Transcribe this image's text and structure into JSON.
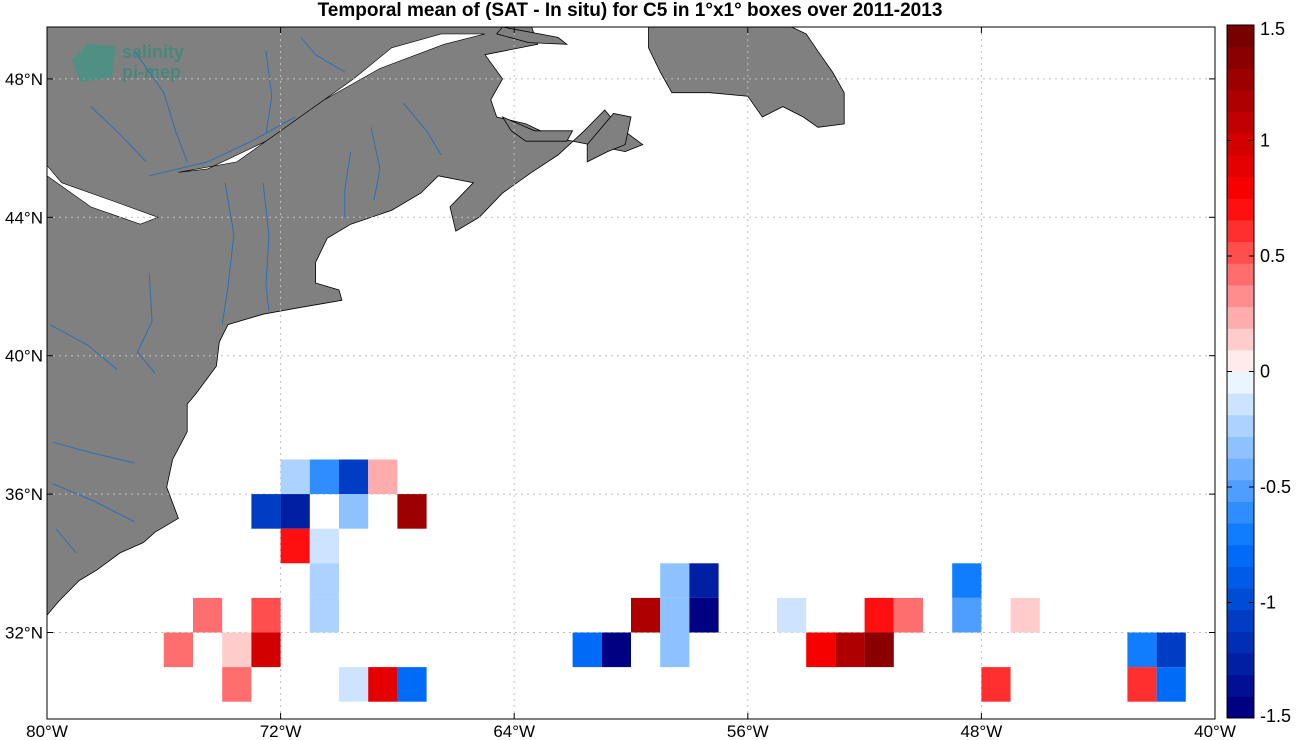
{
  "title": "Temporal mean of (SAT - In situ) for C5 in 1°x1° boxes over 2011-2013",
  "logo": {
    "line1": "salinity",
    "line2": "pi-mep"
  },
  "colors": {
    "land": "#808080",
    "river": "#2d6fb5",
    "ocean": "#ffffff",
    "grid": "#bdbdbd"
  },
  "map": {
    "lon_range": [
      -80,
      -40
    ],
    "lat_range": [
      29.5,
      49.5
    ]
  },
  "xticks": [
    {
      "value": -80,
      "label": "80°W"
    },
    {
      "value": -72,
      "label": "72°W"
    },
    {
      "value": -64,
      "label": "64°W"
    },
    {
      "value": -56,
      "label": "56°W"
    },
    {
      "value": -48,
      "label": "48°W"
    },
    {
      "value": -40,
      "label": "40°W"
    }
  ],
  "yticks": [
    {
      "value": 48,
      "label": "48°N"
    },
    {
      "value": 44,
      "label": "44°N"
    },
    {
      "value": 40,
      "label": "40°N"
    },
    {
      "value": 36,
      "label": "36°N"
    },
    {
      "value": 32,
      "label": "32°N"
    }
  ],
  "colorbar": {
    "range": [
      -1.5,
      1.5
    ],
    "levels": 32,
    "ticks": [
      {
        "value": 1.5,
        "label": "1.5"
      },
      {
        "value": 1,
        "label": "1"
      },
      {
        "value": 0.5,
        "label": "0.5"
      },
      {
        "value": 0,
        "label": "0"
      },
      {
        "value": -0.5,
        "label": "-0.5"
      },
      {
        "value": -1,
        "label": "-1"
      },
      {
        "value": -1.5,
        "label": "-1.5"
      }
    ]
  },
  "chart_data": {
    "type": "heatmap",
    "title": "Temporal mean of (SAT - In situ) for C5 in 1°x1° boxes over 2011-2013",
    "xlabel": "",
    "ylabel": "",
    "cell_size_deg": 1,
    "value_range": [
      -1.5,
      1.5
    ],
    "cells": [
      {
        "lon": -72,
        "lat": 36.5,
        "value": -0.25
      },
      {
        "lon": -71,
        "lat": 36.5,
        "value": -0.6
      },
      {
        "lon": -70,
        "lat": 36.5,
        "value": -1.1
      },
      {
        "lon": -69,
        "lat": 36.5,
        "value": 0.25
      },
      {
        "lon": -73,
        "lat": 35.5,
        "value": -1.1
      },
      {
        "lon": -72,
        "lat": 35.5,
        "value": -1.3
      },
      {
        "lon": -70,
        "lat": 35.5,
        "value": -0.3
      },
      {
        "lon": -68,
        "lat": 35.5,
        "value": 1.3
      },
      {
        "lon": -72,
        "lat": 34.5,
        "value": 0.7
      },
      {
        "lon": -71,
        "lat": 34.5,
        "value": -0.1
      },
      {
        "lon": -71,
        "lat": 33.5,
        "value": -0.2
      },
      {
        "lon": -71,
        "lat": 32.5,
        "value": -0.2
      },
      {
        "lon": -75,
        "lat": 32.5,
        "value": 0.4
      },
      {
        "lon": -73,
        "lat": 32.5,
        "value": 0.55
      },
      {
        "lon": -76,
        "lat": 31.5,
        "value": 0.4
      },
      {
        "lon": -74,
        "lat": 31.5,
        "value": 0.15
      },
      {
        "lon": -73,
        "lat": 31.5,
        "value": 1.0
      },
      {
        "lon": -74,
        "lat": 30.5,
        "value": 0.4
      },
      {
        "lon": -70,
        "lat": 30.5,
        "value": -0.1
      },
      {
        "lon": -69,
        "lat": 30.5,
        "value": 0.85
      },
      {
        "lon": -68,
        "lat": 30.5,
        "value": -0.8
      },
      {
        "lon": -59,
        "lat": 33.5,
        "value": -0.3
      },
      {
        "lon": -58,
        "lat": 33.5,
        "value": -1.3
      },
      {
        "lon": -60,
        "lat": 32.5,
        "value": 1.2
      },
      {
        "lon": -59,
        "lat": 32.5,
        "value": -0.3
      },
      {
        "lon": -58,
        "lat": 32.5,
        "value": -1.5
      },
      {
        "lon": -62,
        "lat": 31.5,
        "value": -0.8
      },
      {
        "lon": -61,
        "lat": 31.5,
        "value": -1.5
      },
      {
        "lon": -59,
        "lat": 31.5,
        "value": -0.3
      },
      {
        "lon": -49,
        "lat": 33.5,
        "value": -0.7
      },
      {
        "lon": -55,
        "lat": 32.5,
        "value": -0.1
      },
      {
        "lon": -52,
        "lat": 32.5,
        "value": 0.7
      },
      {
        "lon": -51,
        "lat": 32.5,
        "value": 0.45
      },
      {
        "lon": -49,
        "lat": 32.5,
        "value": -0.55
      },
      {
        "lon": -47,
        "lat": 32.5,
        "value": 0.15
      },
      {
        "lon": -54,
        "lat": 31.5,
        "value": 0.75
      },
      {
        "lon": -53,
        "lat": 31.5,
        "value": 1.2
      },
      {
        "lon": -52,
        "lat": 31.5,
        "value": 1.4
      },
      {
        "lon": -43,
        "lat": 31.5,
        "value": -0.75
      },
      {
        "lon": -42,
        "lat": 31.5,
        "value": -1.05
      },
      {
        "lon": -48,
        "lat": 30.5,
        "value": 0.6
      },
      {
        "lon": -43,
        "lat": 30.5,
        "value": 0.6
      },
      {
        "lon": -42,
        "lat": 30.5,
        "value": -0.8
      }
    ]
  }
}
